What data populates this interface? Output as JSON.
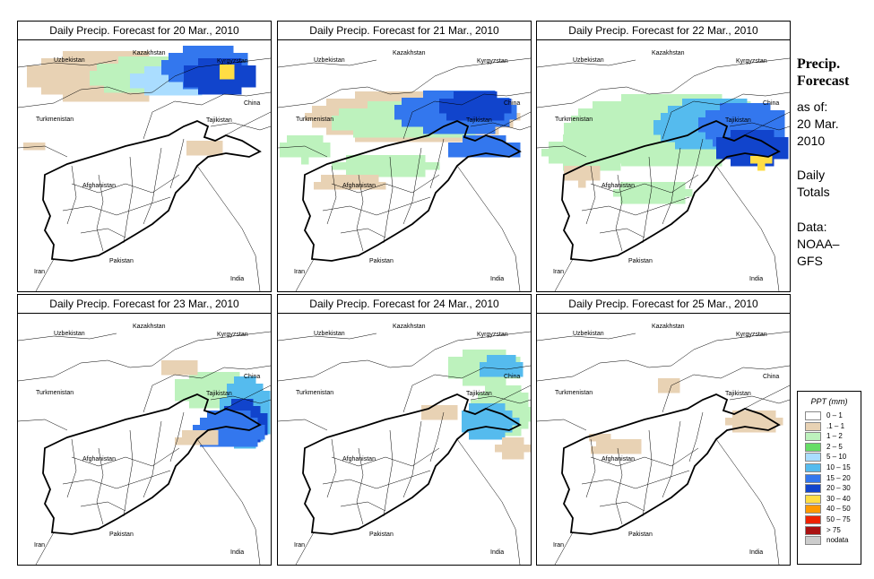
{
  "panels": [
    {
      "title": "Daily Precip. Forecast for  20 Mar., 2010"
    },
    {
      "title": "Daily Precip. Forecast for  21 Mar., 2010"
    },
    {
      "title": "Daily Precip. Forecast for  22 Mar., 2010"
    },
    {
      "title": "Daily Precip. Forecast for  23 Mar., 2010"
    },
    {
      "title": "Daily Precip. Forecast for  24 Mar., 2010"
    },
    {
      "title": "Daily Precip. Forecast for  25 Mar., 2010"
    }
  ],
  "map_labels": {
    "uzbekistan": "Uzbekistan",
    "kazakhstan": "Kazakhstan",
    "kyrgyzstan": "Kyrgyzstan",
    "turkmenistan": "Turkmenistan",
    "tajikistan": "Tajikistan",
    "china": "China",
    "afghanistan": "Afghanistan",
    "iran": "Iran",
    "pakistan": "Pakistan",
    "india": "India"
  },
  "side": {
    "title_line1": "Precip.",
    "title_line2": "Forecast",
    "asof_1": "as of:",
    "asof_2": "20 Mar.",
    "asof_3": "2010",
    "daily_1": "Daily",
    "daily_2": "Totals",
    "data_1": "Data:",
    "data_2": "NOAA–",
    "data_3": "GFS"
  },
  "legend": {
    "title": "PPT (mm)",
    "items": [
      {
        "label": "0 – 1",
        "color": "#ffffff"
      },
      {
        "label": ".1 – 1",
        "color": "#e8d2b4"
      },
      {
        "label": "1 – 2",
        "color": "#bdf2bd"
      },
      {
        "label": "2 – 5",
        "color": "#66dd66"
      },
      {
        "label": "5 – 10",
        "color": "#aaddff"
      },
      {
        "label": "10 – 15",
        "color": "#55bbee"
      },
      {
        "label": "15 – 20",
        "color": "#3377ee"
      },
      {
        "label": "20 – 30",
        "color": "#1144cc"
      },
      {
        "label": "30 – 40",
        "color": "#ffdd44"
      },
      {
        "label": "40 – 50",
        "color": "#ff9900"
      },
      {
        "label": "50 – 75",
        "color": "#ee2200"
      },
      {
        "label": "> 75",
        "color": "#aa1111"
      },
      {
        "label": "nodata",
        "color": "#cccccc"
      }
    ]
  }
}
